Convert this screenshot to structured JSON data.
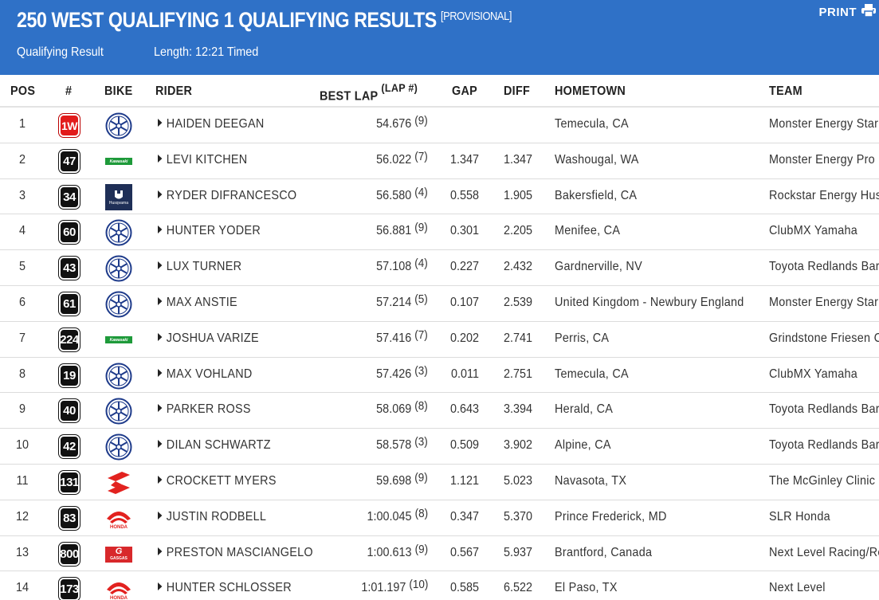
{
  "header": {
    "title": "250 WEST QUALIFYING 1 QUALIFYING RESULTS",
    "status": "[PROVISIONAL]",
    "result_type": "Qualifying Result",
    "length": "Length: 12:21 Timed",
    "print_label": "PRINT",
    "bg_color": "#2f71c7"
  },
  "columns": {
    "pos": "POS",
    "num": "#",
    "bike": "BIKE",
    "rider": "RIDER",
    "best_lap": "BEST LAP",
    "lap_num": "(LAP #)",
    "gap": "GAP",
    "diff": "DIFF",
    "hometown": "HOMETOWN",
    "team": "TEAM"
  },
  "rows": [
    {
      "pos": "1",
      "num": "1W",
      "num_style": "red",
      "bike": "yamaha",
      "rider": "HAIDEN DEEGAN",
      "best": "54.676",
      "lap": "(9)",
      "gap": "",
      "diff": "",
      "hometown": "Temecula, CA",
      "team": "Monster Energy Star"
    },
    {
      "pos": "2",
      "num": "47",
      "num_style": "black",
      "bike": "kawasaki",
      "rider": "LEVI KITCHEN",
      "best": "56.022",
      "lap": "(7)",
      "gap": "1.347",
      "diff": "1.347",
      "hometown": "Washougal, WA",
      "team": "Monster Energy Pro"
    },
    {
      "pos": "3",
      "num": "34",
      "num_style": "black",
      "bike": "husqvarna",
      "rider": "RYDER DIFRANCESCO",
      "best": "56.580",
      "lap": "(4)",
      "gap": "0.558",
      "diff": "1.905",
      "hometown": "Bakersfield, CA",
      "team": "Rockstar Energy Husq"
    },
    {
      "pos": "4",
      "num": "60",
      "num_style": "black",
      "bike": "yamaha",
      "rider": "HUNTER YODER",
      "best": "56.881",
      "lap": "(9)",
      "gap": "0.301",
      "diff": "2.205",
      "hometown": "Menifee, CA",
      "team": "ClubMX Yamaha"
    },
    {
      "pos": "5",
      "num": "43",
      "num_style": "black",
      "bike": "yamaha",
      "rider": "LUX TURNER",
      "best": "57.108",
      "lap": "(4)",
      "gap": "0.227",
      "diff": "2.432",
      "hometown": "Gardnerville, NV",
      "team": "Toyota Redlands Bar"
    },
    {
      "pos": "6",
      "num": "61",
      "num_style": "black",
      "bike": "yamaha",
      "rider": "MAX ANSTIE",
      "best": "57.214",
      "lap": "(5)",
      "gap": "0.107",
      "diff": "2.539",
      "hometown": "United Kingdom - Newbury England",
      "team": "Monster Energy Star"
    },
    {
      "pos": "7",
      "num": "224",
      "num_style": "black",
      "bike": "kawasaki",
      "rider": "JOSHUA VARIZE",
      "best": "57.416",
      "lap": "(7)",
      "gap": "0.202",
      "diff": "2.741",
      "hometown": "Perris, CA",
      "team": "Grindstone Friesen C"
    },
    {
      "pos": "8",
      "num": "19",
      "num_style": "black",
      "bike": "yamaha",
      "rider": "MAX VOHLAND",
      "best": "57.426",
      "lap": "(3)",
      "gap": "0.011",
      "diff": "2.751",
      "hometown": "Temecula, CA",
      "team": "ClubMX Yamaha"
    },
    {
      "pos": "9",
      "num": "40",
      "num_style": "black",
      "bike": "yamaha",
      "rider": "PARKER ROSS",
      "best": "58.069",
      "lap": "(8)",
      "gap": "0.643",
      "diff": "3.394",
      "hometown": "Herald, CA",
      "team": "Toyota Redlands Bar"
    },
    {
      "pos": "10",
      "num": "42",
      "num_style": "black",
      "bike": "yamaha",
      "rider": "DILAN SCHWARTZ",
      "best": "58.578",
      "lap": "(3)",
      "gap": "0.509",
      "diff": "3.902",
      "hometown": "Alpine, CA",
      "team": "Toyota Redlands Bar"
    },
    {
      "pos": "11",
      "num": "131",
      "num_style": "black",
      "bike": "suzuki",
      "rider": "CROCKETT MYERS",
      "best": "59.698",
      "lap": "(9)",
      "gap": "1.121",
      "diff": "5.023",
      "hometown": "Navasota, TX",
      "team": "The McGinley Clinic"
    },
    {
      "pos": "12",
      "num": "83",
      "num_style": "black",
      "bike": "honda",
      "rider": "JUSTIN RODBELL",
      "best": "1:00.045",
      "lap": "(8)",
      "gap": "0.347",
      "diff": "5.370",
      "hometown": "Prince Frederick, MD",
      "team": "SLR Honda"
    },
    {
      "pos": "13",
      "num": "800",
      "num_style": "black",
      "bike": "gasgas",
      "rider": "PRESTON MASCIANGELO",
      "best": "1:00.613",
      "lap": "(9)",
      "gap": "0.567",
      "diff": "5.937",
      "hometown": "Brantford, Canada",
      "team": "Next Level Racing/Re"
    },
    {
      "pos": "14",
      "num": "173",
      "num_style": "black",
      "bike": "honda",
      "rider": "HUNTER SCHLOSSER",
      "best": "1:01.197",
      "lap": "(10)",
      "gap": "0.585",
      "diff": "6.522",
      "hometown": "El Paso, TX",
      "team": "Next Level"
    }
  ],
  "brand_labels": {
    "kawasaki": "Kawasaki",
    "husqvarna": "Husqvarna",
    "honda": "HONDA",
    "gasgas": "GASGAS"
  }
}
